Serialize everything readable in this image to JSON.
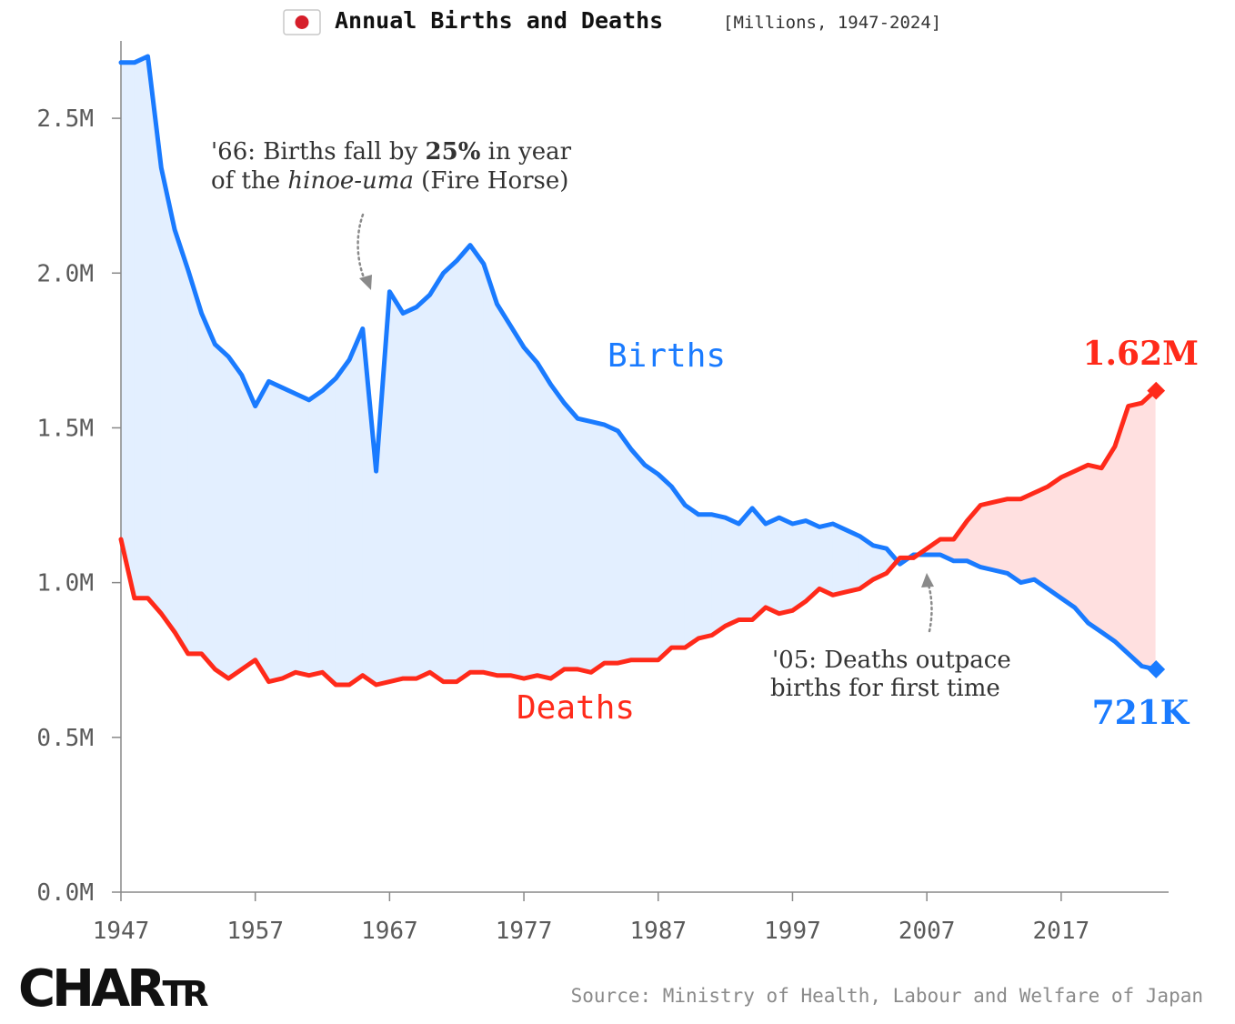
{
  "header": {
    "flag_icon": "japan-flag-icon",
    "title": "Annual Births and Deaths",
    "subtitle": "[Millions, 1947-2024]"
  },
  "colors": {
    "births": "#1a7bff",
    "deaths": "#ff2a1a",
    "births_fill": "#e3efff",
    "deaths_fill": "#ffe0e0",
    "axis": "#888888"
  },
  "annotations": {
    "hinoeuma": {
      "line1": {
        "a": "'66: Births fall by ",
        "b": "25%",
        "c": " in year"
      },
      "line2": {
        "a": "of the ",
        "b": "hinoe-uma",
        "c": " (Fire Horse)"
      }
    },
    "crossover": {
      "line1": "'05: Deaths outpace",
      "line2": "births for first time"
    }
  },
  "end_labels": {
    "deaths": "1.62M",
    "births": "721K"
  },
  "footer": {
    "brand": {
      "part1": "CHAR",
      "part2": "TR"
    },
    "source": "Source: Ministry of Health, Labour and Welfare of Japan"
  },
  "chart_data": {
    "type": "area",
    "title": "Annual Births and Deaths",
    "subtitle": "[Millions, 1947-2024]",
    "xlabel": "",
    "ylabel": "",
    "xlim": [
      1947,
      2025
    ],
    "ylim": [
      0,
      2.75
    ],
    "x_ticks": [
      1947,
      1957,
      1967,
      1977,
      1987,
      1997,
      2007,
      2017
    ],
    "y_ticks": [
      0,
      0.5,
      1.0,
      1.5,
      2.0,
      2.5
    ],
    "y_tick_labels": [
      "0.0M",
      "0.5M",
      "1.0M",
      "1.5M",
      "2.0M",
      "2.5M"
    ],
    "x": [
      1947,
      1948,
      1949,
      1950,
      1951,
      1952,
      1953,
      1954,
      1955,
      1956,
      1957,
      1958,
      1959,
      1960,
      1961,
      1962,
      1963,
      1964,
      1965,
      1966,
      1967,
      1968,
      1969,
      1970,
      1971,
      1972,
      1973,
      1974,
      1975,
      1976,
      1977,
      1978,
      1979,
      1980,
      1981,
      1982,
      1983,
      1984,
      1985,
      1986,
      1987,
      1988,
      1989,
      1990,
      1991,
      1992,
      1993,
      1994,
      1995,
      1996,
      1997,
      1998,
      1999,
      2000,
      2001,
      2002,
      2003,
      2004,
      2005,
      2006,
      2007,
      2008,
      2009,
      2010,
      2011,
      2012,
      2013,
      2014,
      2015,
      2016,
      2017,
      2018,
      2019,
      2020,
      2021,
      2022,
      2023,
      2024
    ],
    "series": [
      {
        "name": "Births",
        "label": "Births",
        "values": [
          2.68,
          2.68,
          2.7,
          2.34,
          2.14,
          2.01,
          1.87,
          1.77,
          1.73,
          1.67,
          1.57,
          1.65,
          1.63,
          1.61,
          1.59,
          1.62,
          1.66,
          1.72,
          1.82,
          1.36,
          1.94,
          1.87,
          1.89,
          1.93,
          2.0,
          2.04,
          2.09,
          2.03,
          1.9,
          1.83,
          1.76,
          1.71,
          1.64,
          1.58,
          1.53,
          1.52,
          1.51,
          1.49,
          1.43,
          1.38,
          1.35,
          1.31,
          1.25,
          1.22,
          1.22,
          1.21,
          1.19,
          1.24,
          1.19,
          1.21,
          1.19,
          1.2,
          1.18,
          1.19,
          1.17,
          1.15,
          1.12,
          1.11,
          1.06,
          1.09,
          1.09,
          1.09,
          1.07,
          1.07,
          1.05,
          1.04,
          1.03,
          1.0,
          1.01,
          0.98,
          0.95,
          0.92,
          0.87,
          0.84,
          0.81,
          0.77,
          0.73,
          0.72
        ]
      },
      {
        "name": "Deaths",
        "label": "Deaths",
        "values": [
          1.14,
          0.95,
          0.95,
          0.9,
          0.84,
          0.77,
          0.77,
          0.72,
          0.69,
          0.72,
          0.75,
          0.68,
          0.69,
          0.71,
          0.7,
          0.71,
          0.67,
          0.67,
          0.7,
          0.67,
          0.68,
          0.69,
          0.69,
          0.71,
          0.68,
          0.68,
          0.71,
          0.71,
          0.7,
          0.7,
          0.69,
          0.7,
          0.69,
          0.72,
          0.72,
          0.71,
          0.74,
          0.74,
          0.75,
          0.75,
          0.75,
          0.79,
          0.79,
          0.82,
          0.83,
          0.86,
          0.88,
          0.88,
          0.92,
          0.9,
          0.91,
          0.94,
          0.98,
          0.96,
          0.97,
          0.98,
          1.01,
          1.03,
          1.08,
          1.08,
          1.11,
          1.14,
          1.14,
          1.2,
          1.25,
          1.26,
          1.27,
          1.27,
          1.29,
          1.31,
          1.34,
          1.36,
          1.38,
          1.37,
          1.44,
          1.57,
          1.58,
          1.62
        ]
      }
    ],
    "end_values": {
      "births": "721K",
      "deaths": "1.62M"
    }
  }
}
